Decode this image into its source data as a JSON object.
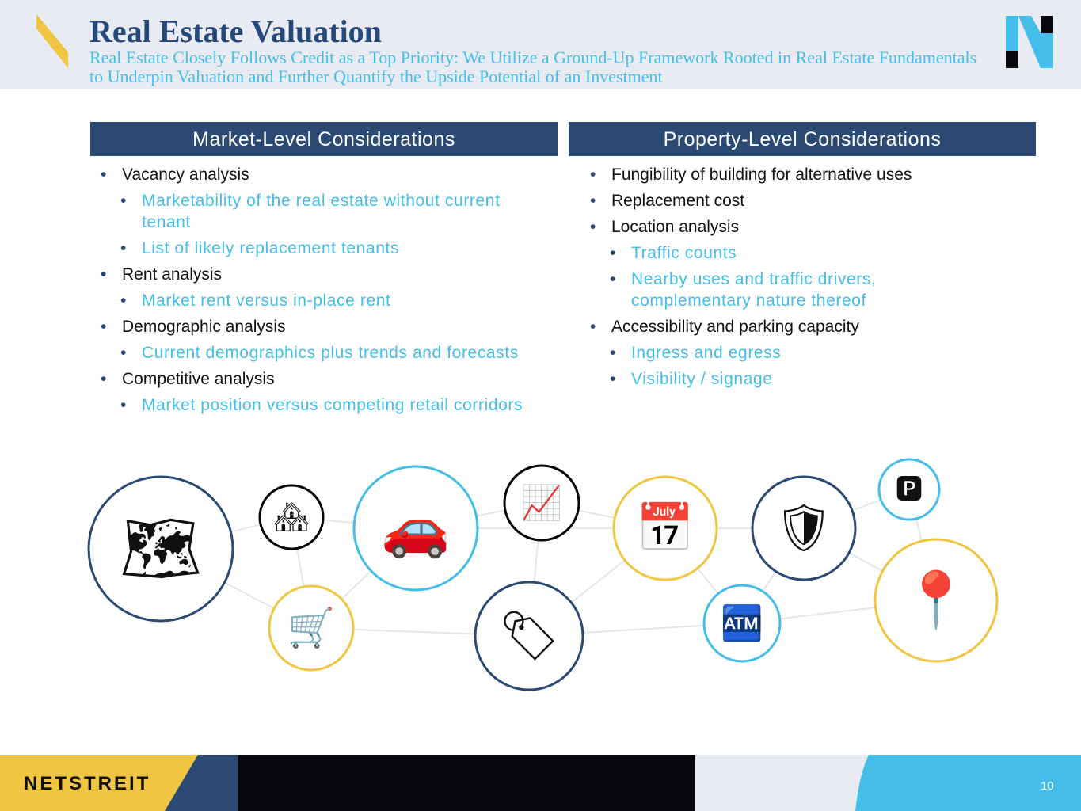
{
  "header": {
    "title": "Real Estate Valuation",
    "subtitle": "Real Estate Closely Follows Credit as a Top Priority: We Utilize a Ground-Up Framework Rooted in Real Estate Fundamentals to Underpin Valuation and Further Quantify the Upside Potential of an Investment"
  },
  "market": {
    "heading": "Market-Level Considerations",
    "items": [
      {
        "level": 1,
        "text": "Vacancy analysis"
      },
      {
        "level": 2,
        "text": "Marketability of the real estate without current tenant"
      },
      {
        "level": 2,
        "text": "List of likely replacement tenants"
      },
      {
        "level": 1,
        "text": "Rent analysis"
      },
      {
        "level": 2,
        "text": "Market rent versus in-place rent"
      },
      {
        "level": 1,
        "text": "Demographic analysis"
      },
      {
        "level": 2,
        "text": "Current demographics plus trends and forecasts"
      },
      {
        "level": 1,
        "text": "Competitive analysis"
      },
      {
        "level": 2,
        "text": "Market position versus competing retail corridors"
      }
    ]
  },
  "property": {
    "heading": "Property-Level Considerations",
    "items": [
      {
        "level": 1,
        "text": "Fungibility of building for alternative uses"
      },
      {
        "level": 1,
        "text": "Replacement cost"
      },
      {
        "level": 1,
        "text": "Location analysis"
      },
      {
        "level": 2,
        "text": "Traffic counts"
      },
      {
        "level": 2,
        "text": "Nearby uses and traffic drivers, complementary nature thereof"
      },
      {
        "level": 1,
        "text": "Accessibility and parking capacity"
      },
      {
        "level": 2,
        "text": "Ingress and egress"
      },
      {
        "level": 2,
        "text": "Visibility / signage"
      }
    ]
  },
  "icons": [
    "blueprint-icon",
    "houses-icon",
    "cars-icon",
    "chart-icon",
    "shopping-cart-icon",
    "price-tag-icon",
    "calendar-icon",
    "highway-shield-icon",
    "parking-meter-icon",
    "cash-register-icon",
    "location-pin-icon"
  ],
  "colors": {
    "navy": "#2a4a73",
    "cyan": "#45bde9",
    "yellow": "#f0c542",
    "black": "#07070b",
    "gray": "#e8ebf2"
  },
  "footer": {
    "brand": "NETSTREIT",
    "page": "10"
  }
}
